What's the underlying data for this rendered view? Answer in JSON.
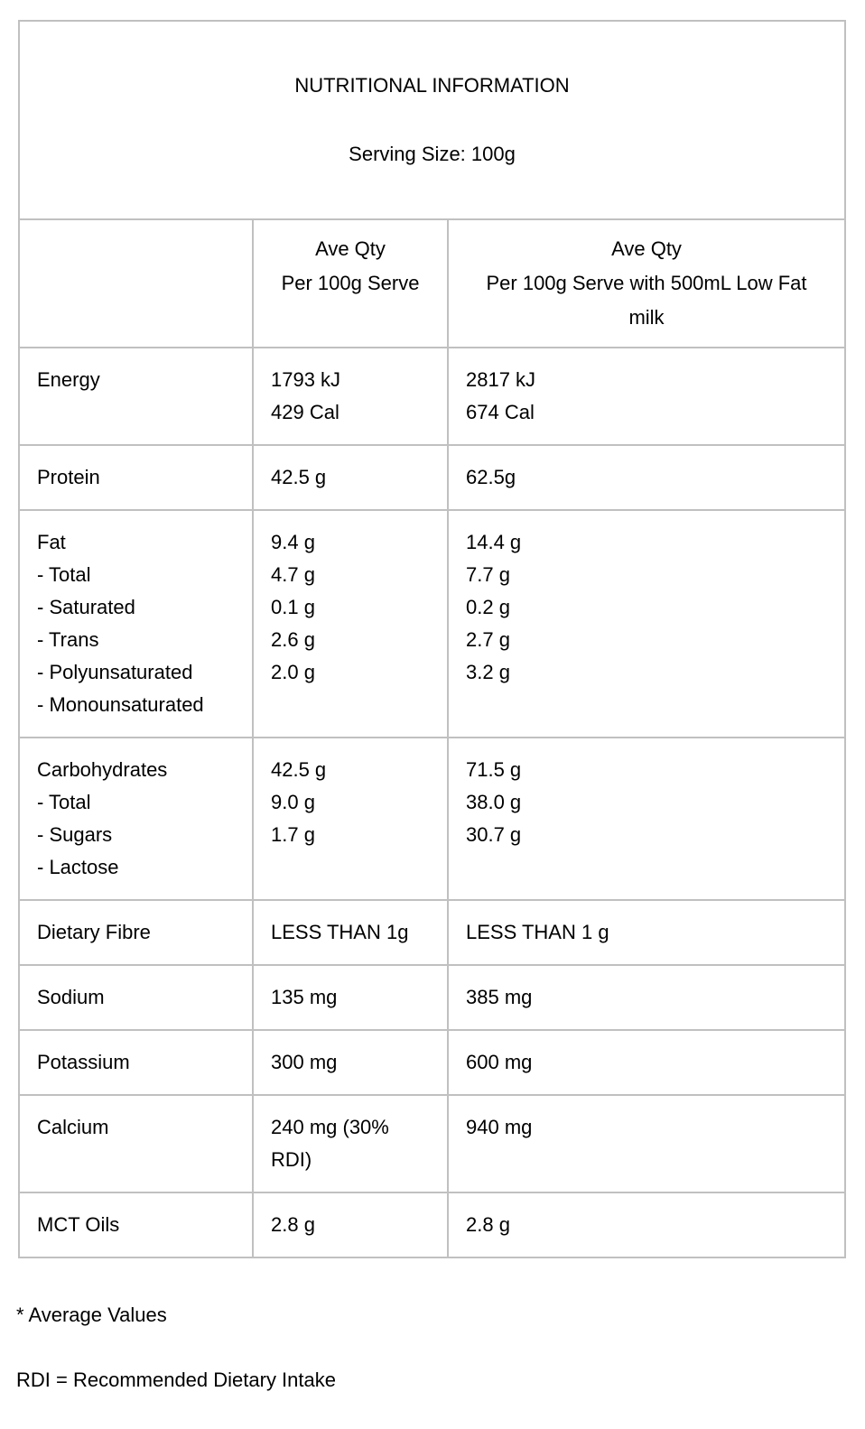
{
  "table": {
    "title": "NUTRITIONAL INFORMATION",
    "serving_size": "Serving Size: 100g",
    "columns": {
      "nutrient": "",
      "per_serve": "Ave Qty\nPer 100g Serve",
      "per_serve_with_milk": "Ave Qty\nPer 100g Serve with 500mL Low Fat milk"
    },
    "rows": [
      {
        "label": "Energy",
        "per_serve": "1793 kJ\n429 Cal",
        "per_serve_with_milk": "2817 kJ\n674 Cal"
      },
      {
        "label": "Protein",
        "per_serve": "42.5 g",
        "per_serve_with_milk": "62.5g"
      },
      {
        "label": "Fat\n- Total\n- Saturated\n- Trans\n- Polyunsaturated\n- Monounsaturated",
        "per_serve": "9.4 g\n4.7 g\n0.1 g\n2.6 g\n2.0 g",
        "per_serve_with_milk": "14.4 g\n7.7 g\n0.2 g\n2.7 g\n3.2 g"
      },
      {
        "label": "Carbohydrates\n- Total\n- Sugars\n- Lactose",
        "per_serve": "42.5 g\n9.0 g\n1.7 g",
        "per_serve_with_milk": "71.5 g\n38.0 g\n30.7 g"
      },
      {
        "label": "Dietary Fibre",
        "per_serve": "LESS THAN 1g",
        "per_serve_with_milk": "LESS THAN 1 g"
      },
      {
        "label": "Sodium",
        "per_serve": "135 mg",
        "per_serve_with_milk": "385 mg"
      },
      {
        "label": "Potassium",
        "per_serve": "300 mg",
        "per_serve_with_milk": "600 mg"
      },
      {
        "label": "Calcium",
        "per_serve": "240 mg (30% RDI)",
        "per_serve_with_milk": "940 mg"
      },
      {
        "label": "MCT Oils",
        "per_serve": "2.8 g",
        "per_serve_with_milk": "2.8 g"
      }
    ],
    "footnotes": {
      "average_values": "* Average Values",
      "rdi_definition": "RDI = Recommended Dietary Intake"
    },
    "colors": {
      "border": "#c0c0c0",
      "text": "#000000",
      "background": "#ffffff"
    }
  }
}
